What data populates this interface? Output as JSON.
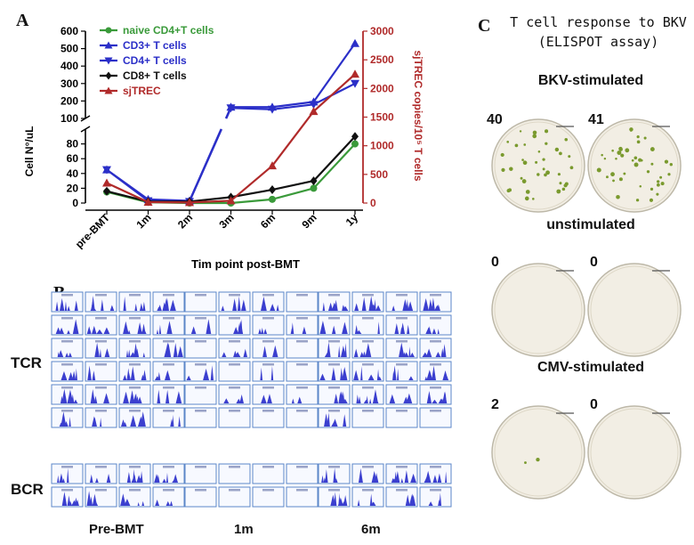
{
  "panels": {
    "a_label": "A",
    "b_label": "B",
    "c_label": "C"
  },
  "chart_data": {
    "type": "line",
    "title": "",
    "xlabel": "Tim point post-BMT",
    "ylabel": "Cell N°/uL",
    "y2label": "sjTREC copies/10⁵ T cells",
    "categories": [
      "pre-BMT",
      "1m",
      "2m",
      "3m",
      "6m",
      "9m",
      "1y"
    ],
    "y_axis_upper": {
      "range": [
        100,
        600
      ],
      "ticks": [
        "600",
        "500",
        "400",
        "300",
        "200"
      ]
    },
    "y_axis_lower": {
      "range": [
        0,
        100
      ],
      "ticks": [
        "100",
        "80",
        "60",
        "40",
        "20",
        "0"
      ]
    },
    "y2_axis": {
      "range": [
        0,
        3000
      ],
      "ticks": [
        "3000",
        "2500",
        "2000",
        "1500",
        "1000",
        "500",
        "0"
      ]
    },
    "series": [
      {
        "name": "naive CD4+T cells",
        "color": "#3a9a3a",
        "marker": "circle",
        "axis": "left",
        "values": [
          15,
          1,
          0,
          0,
          5,
          20,
          80
        ]
      },
      {
        "name": "CD3+ T cells",
        "color": "#2b2fc8",
        "marker": "triangle-up",
        "axis": "left",
        "values": [
          45,
          5,
          3,
          165,
          165,
          195,
          530
        ]
      },
      {
        "name": "CD4+ T cells",
        "color": "#2b2fc8",
        "marker": "triangle-down",
        "axis": "left",
        "values": [
          45,
          3,
          2,
          160,
          152,
          180,
          300
        ]
      },
      {
        "name": "CD8+ T cells",
        "color": "#111111",
        "marker": "diamond",
        "axis": "left",
        "values": [
          16,
          2,
          2,
          8,
          18,
          30,
          90
        ]
      },
      {
        "name": "sjTREC",
        "color": "#b02a2a",
        "marker": "triangle-up",
        "axis": "right",
        "values": [
          350,
          15,
          10,
          40,
          650,
          1600,
          2250
        ]
      }
    ],
    "legend_position": "top-left"
  },
  "spectratype": {
    "tcr_label": "TCR",
    "bcr_label": "BCR",
    "groups": [
      "Pre-BMT",
      "1m",
      "6m"
    ],
    "tcr_rows": 6,
    "bcr_rows": 2,
    "cols_per_group": 4
  },
  "elispot": {
    "title": "T cell response to BKV",
    "subtitle": "(ELISPOT assay)",
    "conditions": [
      {
        "label": "BKV-stimulated",
        "counts": [
          "40",
          "41"
        ]
      },
      {
        "label": "unstimulated",
        "counts": [
          "0",
          "0"
        ]
      },
      {
        "label": "CMV-stimulated",
        "counts": [
          "2",
          "0"
        ]
      }
    ]
  }
}
